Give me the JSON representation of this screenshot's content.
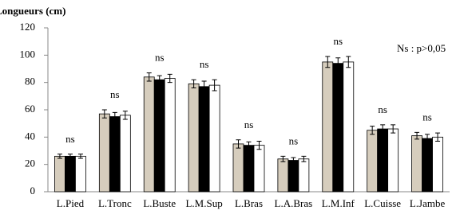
{
  "chart_data": {
    "type": "bar",
    "title": "Longueurs (cm)",
    "annotation": "Ns : p>0,05",
    "categories": [
      "L.Pied",
      "L.Tronc",
      "L.Buste",
      "L.M.Sup",
      "L.Bras",
      "L.A.Bras",
      "L.M.Inf",
      "L.Cuisse",
      "L.Jambe"
    ],
    "group_labels": [
      "ns",
      "ns",
      "ns",
      "ns",
      "ns",
      "ns",
      "ns",
      "ns",
      "ns"
    ],
    "series": [
      {
        "color": "#d6cdbd",
        "values": [
          26,
          57,
          84,
          79,
          35,
          24,
          95,
          45,
          41
        ],
        "errors": [
          1.5,
          3,
          3,
          3,
          3,
          2,
          4,
          3,
          2.5
        ]
      },
      {
        "color": "#000000",
        "values": [
          26,
          55,
          82,
          77,
          34,
          23,
          94,
          46,
          39
        ],
        "errors": [
          1.5,
          3,
          3,
          4,
          2.5,
          2,
          4,
          3,
          3
        ]
      },
      {
        "color": "#ffffff",
        "values": [
          26,
          56,
          83,
          78,
          34,
          24,
          95,
          46,
          40
        ],
        "errors": [
          1.5,
          3,
          3,
          4,
          3,
          2,
          4,
          3,
          3
        ]
      }
    ],
    "ylim": [
      0,
      120
    ],
    "yticks": [
      0,
      20,
      40,
      60,
      80,
      100,
      120
    ],
    "grid": false
  }
}
